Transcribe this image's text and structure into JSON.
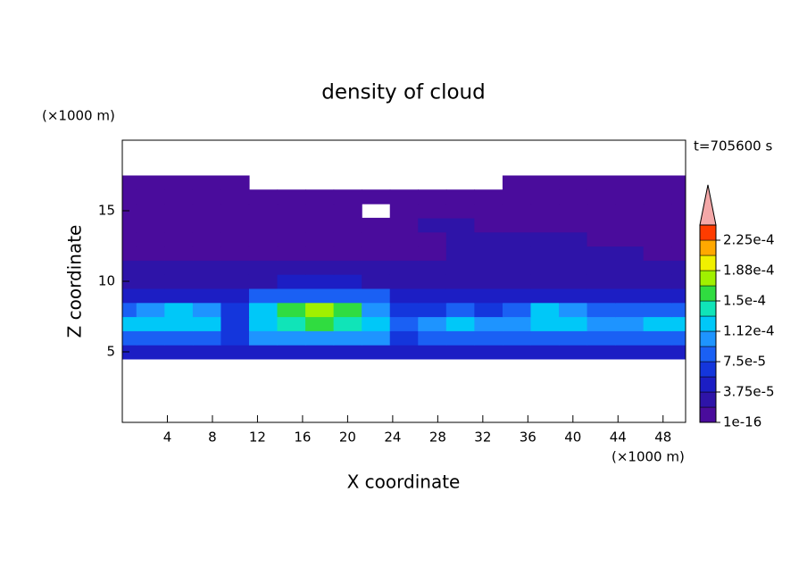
{
  "chart_data": {
    "type": "contour",
    "title": "density of cloud",
    "xlabel": "X coordinate",
    "ylabel": "Z coordinate",
    "xunit": "(×1000 m)",
    "yunit": "(×1000 m)",
    "annotation": "t=705600 s",
    "xlim": [
      0,
      50
    ],
    "ylim": [
      0,
      20
    ],
    "xticks": [
      4,
      8,
      12,
      16,
      20,
      24,
      28,
      32,
      36,
      40,
      44,
      48
    ],
    "yticks": [
      5,
      10,
      15
    ],
    "x": [
      0,
      2.5,
      5,
      7.5,
      10,
      12.5,
      15,
      17.5,
      20,
      22.5,
      25,
      27.5,
      30,
      32.5,
      35,
      37.5,
      40,
      42.5,
      45,
      47.5,
      50
    ],
    "z": [
      5,
      6,
      7,
      8,
      9,
      10,
      11,
      12,
      13,
      14,
      15,
      16,
      17
    ],
    "values": [
      [
        4e-05,
        4e-05,
        4e-05,
        4e-05,
        4e-05,
        4e-05,
        4e-05,
        4e-05,
        4e-05,
        4e-05,
        4e-05,
        4e-05,
        4e-05,
        4e-05,
        4e-05,
        4e-05,
        4e-05,
        4e-05,
        4e-05,
        4e-05,
        4e-05
      ],
      [
        9e-05,
        9e-05,
        9e-05,
        9e-05,
        6e-05,
        0.0001,
        0.0001,
        0.0001,
        0.0001,
        0.0001,
        6e-05,
        9e-05,
        9e-05,
        9e-05,
        9e-05,
        9e-05,
        9e-05,
        9e-05,
        9e-05,
        9e-05,
        9e-05
      ],
      [
        0.000115,
        0.00012,
        0.00013,
        0.00012,
        7e-05,
        0.00013,
        0.000145,
        0.00015,
        0.000145,
        0.000125,
        8e-05,
        0.00011,
        0.00012,
        0.00011,
        0.0001,
        0.00013,
        0.00012,
        0.00011,
        0.00011,
        0.000115,
        0.000115
      ],
      [
        9e-05,
        0.00011,
        0.000125,
        0.00011,
        6e-05,
        0.00013,
        0.00016,
        0.000175,
        0.00016,
        0.0001,
        6e-05,
        7e-05,
        9e-05,
        7e-05,
        9e-05,
        0.00013,
        0.0001,
        8e-05,
        8e-05,
        9e-05,
        9e-05
      ],
      [
        4e-05,
        5e-05,
        5e-05,
        5e-05,
        4e-05,
        8e-05,
        8e-05,
        8e-05,
        8e-05,
        8e-05,
        4e-05,
        5e-05,
        5e-05,
        4e-05,
        5e-05,
        5e-05,
        5e-05,
        4e-05,
        5e-05,
        5e-05,
        5e-05
      ],
      [
        3e-05,
        3e-05,
        3e-05,
        3e-05,
        3e-05,
        3e-05,
        5e-05,
        5e-05,
        5e-05,
        3e-05,
        3e-05,
        3e-05,
        3e-05,
        3e-05,
        3e-05,
        3e-05,
        3e-05,
        3e-05,
        3e-05,
        3e-05,
        3e-05
      ],
      [
        2e-05,
        2e-05,
        2e-05,
        2e-05,
        2e-05,
        2e-05,
        2e-05,
        2e-05,
        2e-05,
        2e-05,
        2e-05,
        2e-05,
        2e-05,
        2e-05,
        2e-05,
        3e-05,
        3e-05,
        3e-05,
        3e-05,
        2e-05,
        2e-05
      ],
      [
        1e-05,
        1e-05,
        1e-05,
        1e-05,
        1e-05,
        1e-05,
        1e-05,
        1e-05,
        1e-05,
        1e-05,
        1e-05,
        1e-05,
        2e-05,
        2e-05,
        2e-05,
        2e-05,
        2e-05,
        2e-05,
        2e-05,
        1e-05,
        1e-05
      ],
      [
        1e-05,
        1e-05,
        1e-05,
        1e-05,
        1e-05,
        1e-05,
        1e-05,
        1e-05,
        1e-05,
        1e-05,
        1e-05,
        1e-05,
        2e-05,
        2e-05,
        2e-05,
        2e-05,
        2e-05,
        1e-05,
        1e-05,
        1e-05,
        1e-05
      ],
      [
        1e-05,
        1e-05,
        1e-05,
        1e-05,
        1e-05,
        1e-05,
        1e-05,
        1e-05,
        1e-05,
        1e-05,
        1e-05,
        2e-05,
        2e-05,
        1e-05,
        1e-05,
        1e-05,
        1e-05,
        1e-05,
        1e-05,
        1e-05,
        1e-05
      ],
      [
        1e-05,
        1e-05,
        1e-05,
        1e-05,
        1e-05,
        1e-05,
        1e-05,
        1e-05,
        1e-05,
        null,
        1e-05,
        1e-05,
        1e-05,
        1e-05,
        1e-05,
        1e-05,
        1e-05,
        1e-05,
        1e-05,
        1e-05,
        1e-05
      ],
      [
        1e-05,
        1e-05,
        1e-05,
        1e-05,
        1e-05,
        1e-05,
        1e-05,
        1e-05,
        1e-05,
        1e-05,
        1e-05,
        1e-05,
        1e-05,
        1e-05,
        1e-05,
        1e-05,
        1e-05,
        1e-05,
        1e-05,
        1e-05,
        1e-05
      ],
      [
        1e-05,
        1e-05,
        1e-05,
        1e-05,
        1e-05,
        null,
        null,
        null,
        null,
        null,
        null,
        null,
        null,
        null,
        1e-05,
        1e-05,
        1e-05,
        1e-05,
        1e-05,
        1e-05,
        1e-05
      ]
    ],
    "colorbar": {
      "levels": [
        1e-16,
        1.875e-05,
        3.75e-05,
        5.625e-05,
        7.5e-05,
        9.375e-05,
        0.0001125,
        0.00013125,
        0.00015,
        0.00016875,
        0.0001875,
        0.00020625,
        0.000225,
        0.00024375
      ],
      "colors": [
        "#4a0c9c",
        "#2e14a8",
        "#1c1ec4",
        "#1436dc",
        "#1a60f4",
        "#1e94ff",
        "#00c8f8",
        "#10e4b8",
        "#30dc40",
        "#a0f000",
        "#f0f000",
        "#ffa800",
        "#ff3c00"
      ],
      "extend_color": "#f4a8a8",
      "ticks": [
        1e-16,
        {
          "value": 3.75e-05,
          "label": "3.75e-5"
        },
        {
          "value": 7.5e-05,
          "label": "7.5e-5"
        },
        {
          "value": 0.0001125,
          "label": "1.12e-4"
        },
        {
          "value": 0.00015,
          "label": "1.5e-4"
        },
        {
          "value": 0.0001875,
          "label": "1.88e-4"
        },
        {
          "value": 0.000225,
          "label": "2.25e-4"
        }
      ]
    }
  }
}
